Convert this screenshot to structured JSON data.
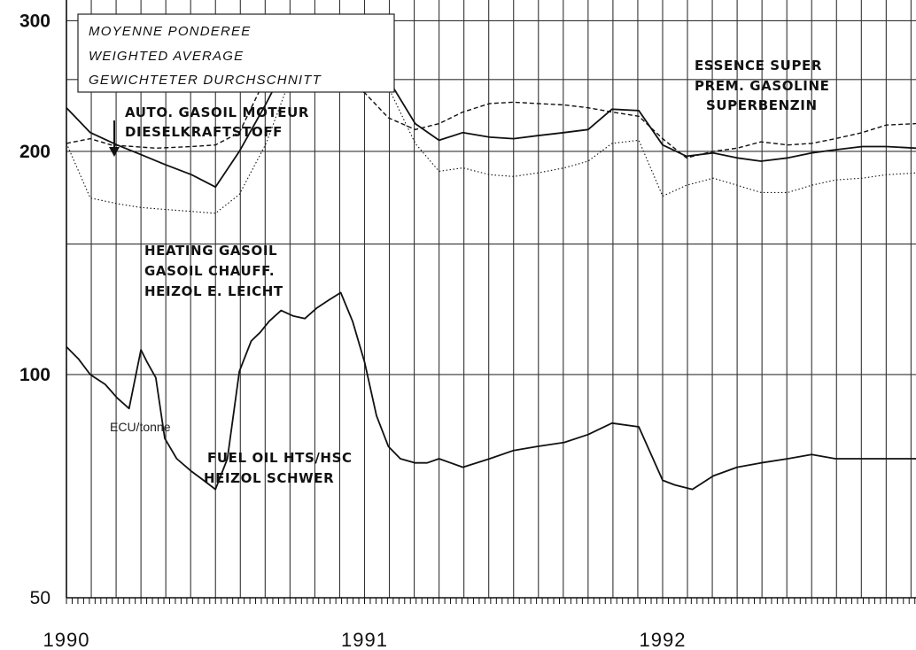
{
  "chart_data": {
    "type": "line",
    "title_lines": [
      "MOYENNE PONDEREE",
      "WEIGHTED AVERAGE",
      "GEWICHTETER DURCHSCHNITT"
    ],
    "unit_label": "ECU/tonne",
    "y_scale": "log",
    "ylim": [
      50,
      320
    ],
    "y_ticks": [
      50,
      100,
      200,
      300
    ],
    "xlim": [
      1990.0,
      1992.85
    ],
    "x_ticks": [
      "1990",
      "1991",
      "1992"
    ],
    "grid": true,
    "series_labels": {
      "auto_gasoil": [
        "AUTO. GASOIL MOTEUR",
        "DIESELKRAFTSTOFF"
      ],
      "heating_gasoil": [
        "HEATING GASOIL",
        "GASOIL CHAUFF.",
        "HEIZOL E. LEICHT"
      ],
      "premium_gasoline": [
        "ESSENCE SUPER",
        "PREM. GASOLINE",
        "SUPERBENZIN"
      ],
      "fuel_oil": [
        "FUEL OIL HTS/HSC",
        "HEIZOL SCHWER"
      ]
    },
    "series": [
      {
        "key": "premium_gasoline",
        "style": "dashed",
        "x": [
          1990.0,
          1990.08,
          1990.15,
          1990.3,
          1990.42,
          1990.5,
          1990.58,
          1990.67,
          1990.75,
          1990.83,
          1990.92,
          1991.0,
          1991.08,
          1991.17,
          1991.25,
          1991.33,
          1991.42,
          1991.5,
          1991.58,
          1991.67,
          1991.75,
          1991.83,
          1991.92,
          1992.0,
          1992.08,
          1992.17,
          1992.25,
          1992.33,
          1992.42,
          1992.5,
          1992.58,
          1992.67,
          1992.75,
          1992.85
        ],
        "values": [
          205,
          208,
          204,
          202,
          203,
          204,
          212,
          252,
          262,
          260,
          244,
          240,
          222,
          214,
          218,
          226,
          232,
          233,
          232,
          231,
          229,
          226,
          223,
          208,
          196,
          200,
          202,
          206,
          204,
          205,
          208,
          212,
          217,
          218
        ]
      },
      {
        "key": "auto_gasoil",
        "style": "solid",
        "x": [
          1990.0,
          1990.08,
          1990.17,
          1990.25,
          1990.33,
          1990.42,
          1990.5,
          1990.58,
          1990.67,
          1990.75,
          1990.83,
          1990.92,
          1991.0,
          1991.08,
          1991.17,
          1991.25,
          1991.33,
          1991.42,
          1991.5,
          1991.58,
          1991.67,
          1991.75,
          1991.83,
          1991.92,
          1992.0,
          1992.08,
          1992.17,
          1992.25,
          1992.33,
          1992.42,
          1992.5,
          1992.58,
          1992.67,
          1992.75,
          1992.85
        ],
        "values": [
          229,
          212,
          204,
          198,
          192,
          186,
          179,
          200,
          232,
          268,
          276,
          258,
          254,
          250,
          218,
          207,
          212,
          209,
          208,
          210,
          212,
          214,
          228,
          227,
          204,
          197,
          199,
          196,
          194,
          196,
          199,
          201,
          203,
          203,
          202
        ]
      },
      {
        "key": "heating_gasoil",
        "style": "dotted",
        "x": [
          1990.0,
          1990.08,
          1990.17,
          1990.25,
          1990.33,
          1990.42,
          1990.5,
          1990.58,
          1990.67,
          1990.75,
          1990.83,
          1990.92,
          1991.0,
          1991.08,
          1991.17,
          1991.25,
          1991.33,
          1991.42,
          1991.5,
          1991.58,
          1991.67,
          1991.75,
          1991.83,
          1991.92,
          1992.0,
          1992.08,
          1992.17,
          1992.25,
          1992.33,
          1992.42,
          1992.5,
          1992.58,
          1992.67,
          1992.75,
          1992.85
        ],
        "values": [
          205,
          173,
          170,
          168,
          167,
          166,
          165,
          175,
          205,
          250,
          270,
          252,
          240,
          244,
          205,
          188,
          190,
          186,
          185,
          187,
          190,
          194,
          205,
          207,
          174,
          180,
          184,
          180,
          176,
          176,
          180,
          183,
          184,
          186,
          187
        ]
      },
      {
        "key": "fuel_oil",
        "style": "solid",
        "x": [
          1990.0,
          1990.04,
          1990.08,
          1990.13,
          1990.17,
          1990.21,
          1990.25,
          1990.27,
          1990.3,
          1990.33,
          1990.37,
          1990.42,
          1990.46,
          1990.5,
          1990.54,
          1990.58,
          1990.62,
          1990.65,
          1990.68,
          1990.72,
          1990.76,
          1990.8,
          1990.84,
          1990.88,
          1990.92,
          1990.96,
          1991.0,
          1991.04,
          1991.08,
          1991.12,
          1991.17,
          1991.21,
          1991.25,
          1991.33,
          1991.42,
          1991.5,
          1991.58,
          1991.67,
          1991.75,
          1991.83,
          1991.92,
          1992.0,
          1992.04,
          1992.1,
          1992.17,
          1992.25,
          1992.33,
          1992.42,
          1992.5,
          1992.58,
          1992.67,
          1992.75,
          1992.85
        ],
        "values": [
          109,
          105,
          100,
          97,
          93,
          90,
          108,
          104,
          99,
          82,
          77,
          74,
          72,
          70,
          77,
          101,
          111,
          114,
          118,
          122,
          120,
          119,
          123,
          126,
          129,
          118,
          104,
          88,
          80,
          77,
          76,
          76,
          77,
          75,
          77,
          79,
          80,
          81,
          83,
          86,
          85,
          72,
          71,
          70,
          73,
          75,
          76,
          77,
          78,
          77,
          77,
          77,
          77
        ]
      }
    ]
  }
}
